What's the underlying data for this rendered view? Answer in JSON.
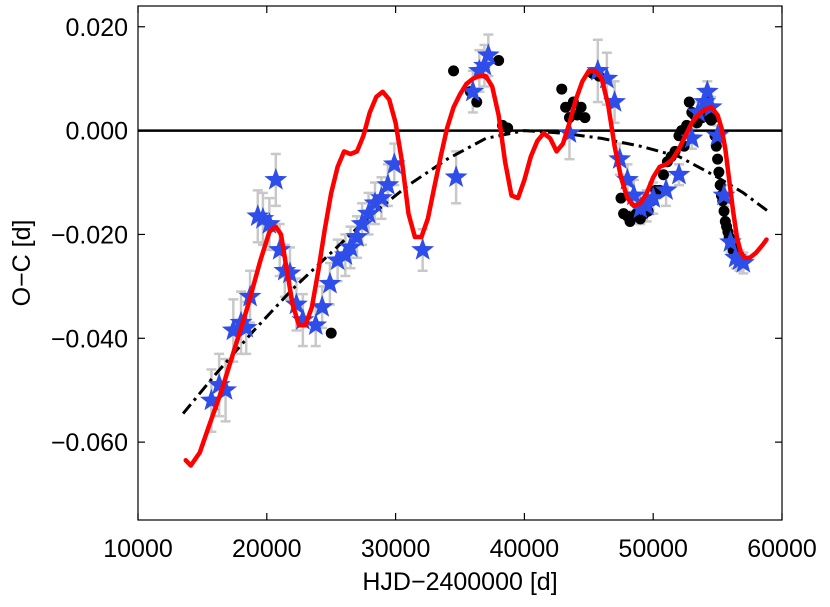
{
  "chart_data": {
    "type": "scatter",
    "title": "",
    "xlabel": "HJD−2400000 [d]",
    "ylabel": "O−C [d]",
    "xlim": [
      10000,
      60000
    ],
    "ylim": [
      -0.075,
      0.024
    ],
    "grid": false,
    "legend": "none",
    "x_ticks": [
      {
        "value": 10000,
        "label": "10000"
      },
      {
        "value": 20000,
        "label": "20000"
      },
      {
        "value": 30000,
        "label": "30000"
      },
      {
        "value": 40000,
        "label": "40000"
      },
      {
        "value": 50000,
        "label": "50000"
      },
      {
        "value": 60000,
        "label": "60000"
      }
    ],
    "y_ticks": [
      {
        "value": 0.02,
        "label": "0.020"
      },
      {
        "value": 0.0,
        "label": "0.000"
      },
      {
        "value": -0.02,
        "label": "−0.020"
      },
      {
        "value": -0.04,
        "label": "−0.040"
      },
      {
        "value": -0.06,
        "label": "−0.060"
      }
    ],
    "reference_line": {
      "name": "zero line",
      "y": 0.0,
      "color": "#000000"
    },
    "series": [
      {
        "name": "red fit",
        "kind": "line",
        "style": "solid",
        "color": "#ff0000",
        "x": [
          13700,
          14100,
          14800,
          15500,
          16500,
          17500,
          18500,
          19500,
          20200,
          20700,
          21100,
          21500,
          22000,
          22500,
          23000,
          23500,
          24000,
          24500,
          25000,
          25500,
          26000,
          26500,
          27000,
          27500,
          28000,
          28500,
          29000,
          29500,
          30000,
          30500,
          31000,
          31500,
          32000,
          32500,
          33000,
          33500,
          34000,
          34500,
          35000,
          35500,
          36000,
          36500,
          37000,
          37500,
          38000,
          38500,
          39000,
          39500,
          40000,
          40500,
          41000,
          41500,
          42000,
          42500,
          43000,
          43500,
          44000,
          44500,
          45000,
          45500,
          46000,
          46500,
          47000,
          47500,
          48000,
          48500,
          49000,
          49500,
          50000,
          50500,
          51000,
          51500,
          52000,
          52500,
          53000,
          53500,
          54000,
          54500,
          55000,
          55300,
          55600,
          55900,
          56200,
          56500,
          56800,
          57100,
          57500,
          58000,
          58500,
          58800
        ],
        "y": [
          -0.0635,
          -0.0645,
          -0.062,
          -0.057,
          -0.05,
          -0.042,
          -0.034,
          -0.025,
          -0.0195,
          -0.0185,
          -0.02,
          -0.026,
          -0.0335,
          -0.0375,
          -0.0375,
          -0.034,
          -0.027,
          -0.019,
          -0.012,
          -0.007,
          -0.004,
          -0.0045,
          -0.004,
          -0.001,
          0.0035,
          0.0065,
          0.0075,
          0.006,
          0.0015,
          -0.006,
          -0.016,
          -0.0205,
          -0.0205,
          -0.017,
          -0.011,
          -0.005,
          0.0005,
          0.0045,
          0.007,
          0.009,
          0.01,
          0.0105,
          0.0105,
          0.0085,
          0.003,
          -0.006,
          -0.0125,
          -0.013,
          -0.0095,
          -0.005,
          -0.002,
          -0.0005,
          -0.0015,
          -0.004,
          -0.0025,
          0.0015,
          0.006,
          0.0095,
          0.0115,
          0.0115,
          0.01,
          0.005,
          -0.003,
          -0.009,
          -0.013,
          -0.0145,
          -0.014,
          -0.012,
          -0.009,
          -0.007,
          -0.0065,
          -0.0055,
          -0.0035,
          -0.001,
          0.0015,
          0.003,
          0.004,
          0.0045,
          0.003,
          0.0005,
          -0.0035,
          -0.0095,
          -0.0155,
          -0.0205,
          -0.0235,
          -0.0245,
          -0.0245,
          -0.0235,
          -0.022,
          -0.021
        ]
      },
      {
        "name": "quadratic trend",
        "kind": "line",
        "style": "dashdot",
        "color": "#000000",
        "x": [
          13500,
          16000,
          19000,
          22000,
          25000,
          28000,
          31000,
          34000,
          37000,
          40000,
          43000,
          46000,
          49000,
          52000,
          55000,
          57000,
          58900
        ],
        "y": [
          -0.0545,
          -0.047,
          -0.0385,
          -0.0305,
          -0.0235,
          -0.0165,
          -0.0105,
          -0.0055,
          -0.0015,
          0.0,
          -0.0005,
          -0.0015,
          -0.003,
          -0.005,
          -0.009,
          -0.012,
          -0.0155
        ]
      },
      {
        "name": "blue stars",
        "kind": "star",
        "color": "#2f4de8",
        "x": [
          15700,
          16300,
          16800,
          17400,
          18000,
          18400,
          18700,
          19300,
          19700,
          20200,
          20700,
          21000,
          21400,
          21800,
          22300,
          22800,
          23800,
          24300,
          24900,
          25500,
          26100,
          26500,
          27000,
          27400,
          27900,
          28400,
          28900,
          29400,
          29900,
          32100,
          34700,
          36000,
          36500,
          36900,
          37200,
          43500,
          45700,
          46400,
          47000,
          47400,
          48000,
          48500,
          49000,
          49500,
          50000,
          51000,
          52000,
          53000,
          53500,
          54000,
          54200,
          54500,
          55000,
          55500,
          56000,
          56400,
          56700,
          57000
        ],
        "y": [
          -0.052,
          -0.049,
          -0.05,
          -0.0385,
          -0.037,
          -0.038,
          -0.032,
          -0.0165,
          -0.017,
          -0.018,
          -0.0095,
          -0.023,
          -0.027,
          -0.0275,
          -0.0335,
          -0.0365,
          -0.0375,
          -0.034,
          -0.0295,
          -0.025,
          -0.024,
          -0.0225,
          -0.0205,
          -0.018,
          -0.016,
          -0.014,
          -0.013,
          -0.0105,
          -0.0065,
          -0.023,
          -0.009,
          0.0075,
          0.0115,
          0.0125,
          0.0145,
          -0.0005,
          0.0115,
          0.01,
          0.0055,
          -0.0055,
          -0.0095,
          -0.0125,
          -0.015,
          -0.0145,
          -0.013,
          -0.0115,
          -0.0085,
          -0.0015,
          0.0035,
          0.0055,
          0.0075,
          0.0045,
          -0.001,
          -0.0125,
          -0.0215,
          -0.0245,
          -0.025,
          -0.0255
        ],
        "err": [
          0.006,
          0.006,
          0.006,
          0.006,
          0.006,
          0.005,
          0.005,
          0.005,
          0.005,
          0.005,
          0.005,
          0.005,
          0.005,
          0.005,
          0.005,
          0.005,
          0.004,
          0.004,
          0.004,
          0.004,
          0.004,
          0.004,
          0.004,
          0.004,
          0.004,
          0.004,
          0.004,
          0.004,
          0.004,
          0.004,
          0.005,
          0.004,
          0.004,
          0.004,
          0.004,
          0.005,
          0.006,
          0.005,
          0.004,
          0.003,
          0.003,
          0.003,
          0.003,
          0.003,
          0.003,
          0.003,
          0.002,
          0.002,
          0.002,
          0.002,
          0.002,
          0.002,
          0.002,
          0.002,
          0.002,
          0.002,
          0.002,
          0.002
        ]
      },
      {
        "name": "black dots",
        "kind": "dot",
        "color": "#000000",
        "x": [
          25000,
          34500,
          35800,
          36300,
          38000,
          38300,
          38700,
          42900,
          43200,
          43500,
          43800,
          44100,
          44400,
          44700,
          45300,
          45800,
          47500,
          47700,
          48000,
          48200,
          48500,
          48700,
          49000,
          49300,
          49600,
          49900,
          50200,
          50500,
          50800,
          51100,
          51400,
          51700,
          52000,
          52200,
          52400,
          52600,
          52800,
          53000,
          53200,
          53400,
          53600,
          53800,
          54000,
          54100,
          54200,
          54300,
          54400,
          54500,
          54600,
          54700,
          54800,
          54900,
          55000,
          55100,
          55200,
          55300,
          55400,
          55500,
          55600,
          55700,
          55800,
          55900,
          56000,
          56100,
          56200,
          56300,
          56400
        ],
        "y": [
          -0.039,
          0.0115,
          0.0075,
          0.0055,
          0.0135,
          0.001,
          0.0005,
          0.008,
          0.0045,
          0.0025,
          0.0055,
          0.003,
          0.0045,
          0.0025,
          0.011,
          0.0105,
          -0.013,
          -0.016,
          -0.0165,
          -0.0175,
          -0.0165,
          -0.016,
          -0.017,
          -0.016,
          -0.0155,
          -0.0135,
          -0.0115,
          -0.0115,
          -0.0085,
          -0.006,
          -0.005,
          -0.004,
          -0.001,
          0.0,
          -0.003,
          0.001,
          0.0055,
          0.0035,
          0.003,
          0.0015,
          0.003,
          0.0025,
          0.004,
          0.0045,
          0.0055,
          0.005,
          0.004,
          0.002,
          0.003,
          0.0025,
          -0.001,
          -0.003,
          -0.0055,
          -0.008,
          -0.0105,
          -0.0125,
          -0.0135,
          -0.0155,
          -0.0175,
          -0.0185,
          -0.0195,
          -0.0205,
          -0.0215,
          -0.0215,
          -0.023,
          -0.022,
          -0.023
        ]
      }
    ]
  }
}
